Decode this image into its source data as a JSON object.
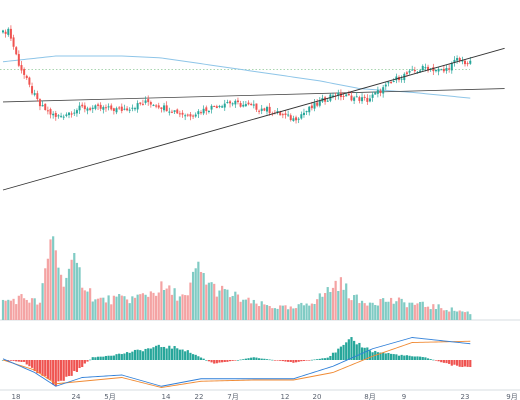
{
  "chart_data": {
    "type": "candlestick",
    "title": "",
    "colors": {
      "up": "#26a69a",
      "down": "#ef5350",
      "up_volume": "#80cbc4",
      "down_volume": "#f4a3a3",
      "ma": "#8ec5e8",
      "trendline": "#333333",
      "support_line": "#444444",
      "dotted_level": "#9fd0a6",
      "macd_line": "#2f7fd8",
      "signal_line": "#f08a33"
    },
    "x_axis": {
      "labels": [
        "18",
        "24",
        "5月",
        "14",
        "22",
        "7月",
        "12",
        "20",
        "8月",
        "9",
        "23",
        "9月"
      ]
    },
    "price": {
      "ylim": [
        64,
        157
      ],
      "series_summary": [
        {
          "index": 0,
          "close": 146
        },
        {
          "index": 2,
          "close": 148
        },
        {
          "index": 6,
          "close": 130
        },
        {
          "index": 10,
          "close": 118
        },
        {
          "index": 14,
          "close": 108
        },
        {
          "index": 20,
          "close": 102
        },
        {
          "index": 30,
          "close": 107
        },
        {
          "index": 45,
          "close": 106
        },
        {
          "index": 55,
          "close": 110
        },
        {
          "index": 70,
          "close": 103
        },
        {
          "index": 85,
          "close": 110
        },
        {
          "index": 100,
          "close": 106
        },
        {
          "index": 110,
          "close": 101
        },
        {
          "index": 125,
          "close": 114
        },
        {
          "index": 138,
          "close": 111
        },
        {
          "index": 150,
          "close": 123
        },
        {
          "index": 160,
          "close": 128
        },
        {
          "index": 167,
          "close": 126
        },
        {
          "index": 172,
          "close": 132
        },
        {
          "index": 177,
          "close": 130
        }
      ],
      "moving_average": [
        {
          "index": 0,
          "value": 131
        },
        {
          "index": 20,
          "value": 134
        },
        {
          "index": 45,
          "value": 134
        },
        {
          "index": 60,
          "value": 133
        },
        {
          "index": 80,
          "value": 129
        },
        {
          "index": 100,
          "value": 125
        },
        {
          "index": 120,
          "value": 121
        },
        {
          "index": 135,
          "value": 117
        },
        {
          "index": 155,
          "value": 115
        },
        {
          "index": 177,
          "value": 112
        }
      ],
      "trendline": {
        "start": {
          "index": 0,
          "value": 64
        },
        "end": {
          "index": 190,
          "value": 138
        }
      },
      "support_line": {
        "start": {
          "index": 0,
          "value": 110
        },
        "end": {
          "index": 190,
          "value": 117
        }
      },
      "dotted_level": 127
    },
    "volume": {
      "ylim": [
        0,
        100
      ],
      "series_summary": [
        {
          "index": 0,
          "value": 20
        },
        {
          "index": 8,
          "value": 25
        },
        {
          "index": 14,
          "value": 18
        },
        {
          "index": 19,
          "value": 100
        },
        {
          "index": 22,
          "value": 45
        },
        {
          "index": 27,
          "value": 60
        },
        {
          "index": 35,
          "value": 22
        },
        {
          "index": 50,
          "value": 24
        },
        {
          "index": 60,
          "value": 35
        },
        {
          "index": 70,
          "value": 24
        },
        {
          "index": 73,
          "value": 58
        },
        {
          "index": 80,
          "value": 35
        },
        {
          "index": 95,
          "value": 18
        },
        {
          "index": 110,
          "value": 12
        },
        {
          "index": 120,
          "value": 25
        },
        {
          "index": 127,
          "value": 42
        },
        {
          "index": 135,
          "value": 20
        },
        {
          "index": 145,
          "value": 22
        },
        {
          "index": 155,
          "value": 18
        },
        {
          "index": 165,
          "value": 14
        },
        {
          "index": 177,
          "value": 8
        }
      ]
    },
    "macd": {
      "ylim": [
        -1,
        1
      ],
      "histogram_summary": [
        {
          "index": 0,
          "value": 0.0
        },
        {
          "index": 8,
          "value": -0.08
        },
        {
          "index": 14,
          "value": -0.55
        },
        {
          "index": 19,
          "value": -1.0
        },
        {
          "index": 26,
          "value": -0.6
        },
        {
          "index": 34,
          "value": 0.1
        },
        {
          "index": 45,
          "value": 0.25
        },
        {
          "index": 60,
          "value": 0.55
        },
        {
          "index": 68,
          "value": 0.45
        },
        {
          "index": 80,
          "value": -0.15
        },
        {
          "index": 95,
          "value": 0.1
        },
        {
          "index": 110,
          "value": -0.1
        },
        {
          "index": 123,
          "value": 0.1
        },
        {
          "index": 132,
          "value": 0.8
        },
        {
          "index": 140,
          "value": 0.35
        },
        {
          "index": 150,
          "value": 0.2
        },
        {
          "index": 160,
          "value": 0.1
        },
        {
          "index": 170,
          "value": -0.2
        },
        {
          "index": 177,
          "value": -0.3
        }
      ],
      "macd_line_summary": [
        {
          "index": 0,
          "value": 0.05
        },
        {
          "index": 12,
          "value": -0.5
        },
        {
          "index": 20,
          "value": -1.05
        },
        {
          "index": 30,
          "value": -0.7
        },
        {
          "index": 45,
          "value": -0.6
        },
        {
          "index": 60,
          "value": -1.05
        },
        {
          "index": 75,
          "value": -0.75
        },
        {
          "index": 95,
          "value": -0.75
        },
        {
          "index": 110,
          "value": -0.75
        },
        {
          "index": 125,
          "value": -0.25
        },
        {
          "index": 140,
          "value": 0.45
        },
        {
          "index": 155,
          "value": 0.9
        },
        {
          "index": 177,
          "value": 0.65
        }
      ],
      "signal_line_summary": [
        {
          "index": 0,
          "value": 0.0
        },
        {
          "index": 12,
          "value": -0.4
        },
        {
          "index": 20,
          "value": -0.95
        },
        {
          "index": 30,
          "value": -0.85
        },
        {
          "index": 45,
          "value": -0.7
        },
        {
          "index": 60,
          "value": -1.1
        },
        {
          "index": 75,
          "value": -0.85
        },
        {
          "index": 95,
          "value": -0.8
        },
        {
          "index": 110,
          "value": -0.8
        },
        {
          "index": 125,
          "value": -0.5
        },
        {
          "index": 140,
          "value": 0.15
        },
        {
          "index": 155,
          "value": 0.7
        },
        {
          "index": 177,
          "value": 0.75
        }
      ]
    }
  }
}
